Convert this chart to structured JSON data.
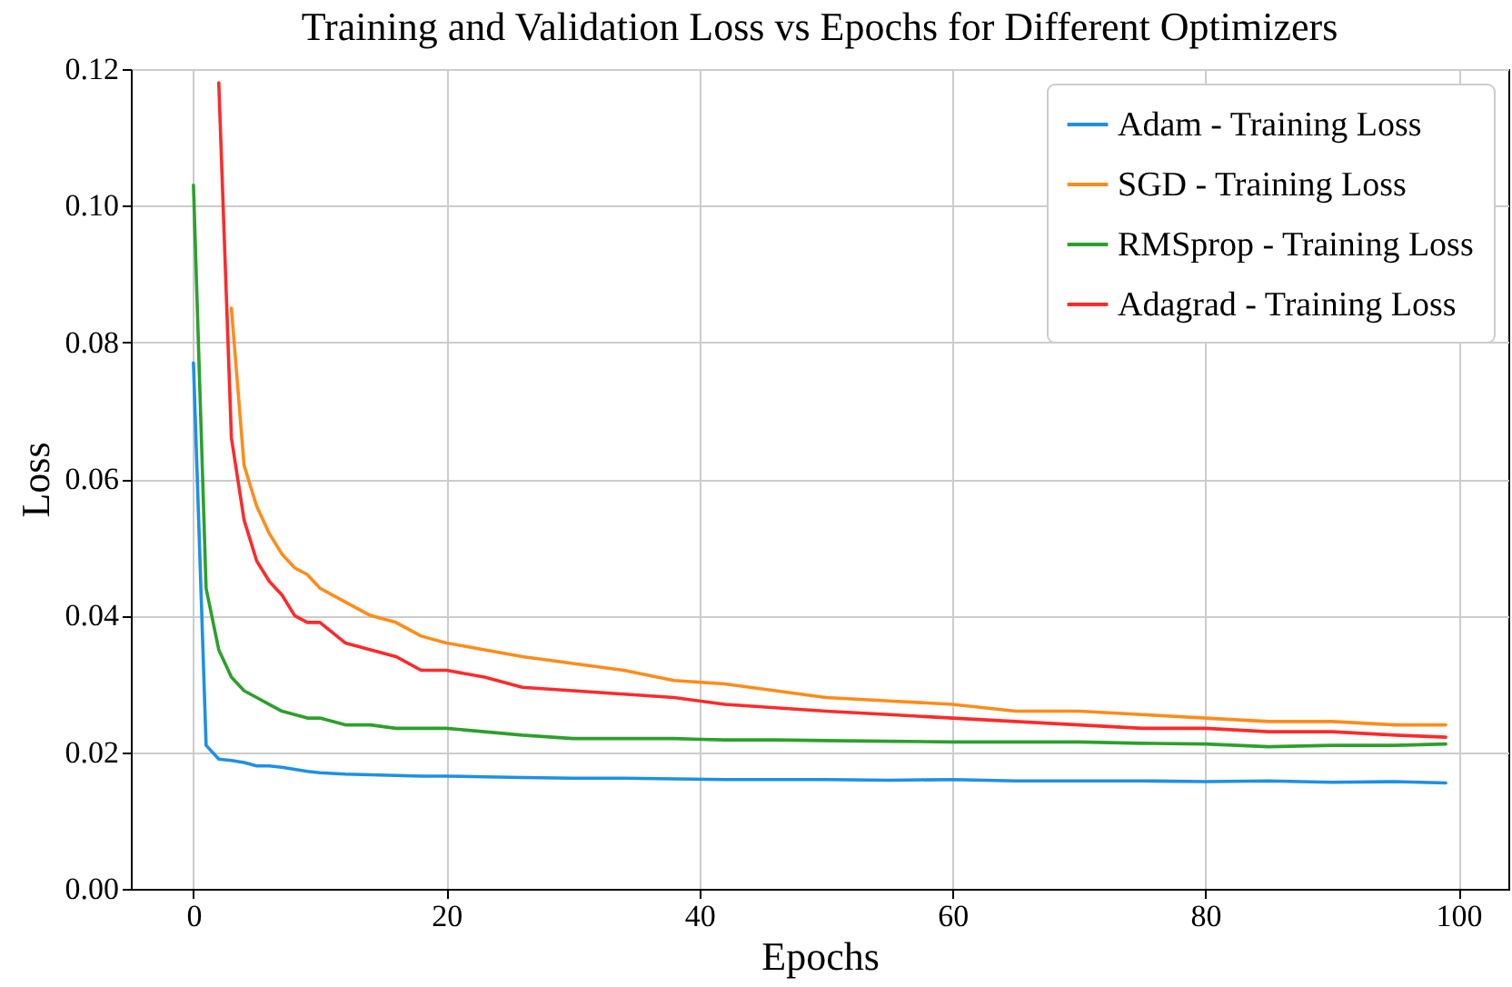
{
  "chart_data": {
    "type": "line",
    "title": "Training and Validation Loss vs Epochs for Different Optimizers",
    "xlabel": "Epochs",
    "ylabel": "Loss",
    "x": [
      0,
      1,
      2,
      3,
      4,
      5,
      6,
      7,
      8,
      9,
      10,
      12,
      14,
      16,
      18,
      20,
      23,
      26,
      30,
      34,
      38,
      42,
      46,
      50,
      55,
      60,
      65,
      70,
      75,
      80,
      85,
      90,
      95,
      99
    ],
    "series": [
      {
        "name": "Adam - Training Loss",
        "color": "#1e90e6",
        "values": [
          0.077,
          0.021,
          0.019,
          0.0188,
          0.0185,
          0.018,
          0.018,
          0.0178,
          0.0175,
          0.0172,
          0.017,
          0.0168,
          0.0167,
          0.0166,
          0.0165,
          0.0165,
          0.0164,
          0.0163,
          0.0162,
          0.0162,
          0.0161,
          0.016,
          0.016,
          0.016,
          0.0159,
          0.016,
          0.0158,
          0.0158,
          0.0158,
          0.0157,
          0.0158,
          0.0156,
          0.0157,
          0.0155
        ]
      },
      {
        "name": "SGD - Training Loss",
        "color": "#ff8c1a",
        "values": [
          null,
          null,
          null,
          0.085,
          0.062,
          0.056,
          0.052,
          0.049,
          0.047,
          0.046,
          0.044,
          0.042,
          0.04,
          0.039,
          0.037,
          0.036,
          0.035,
          0.034,
          0.033,
          0.032,
          0.0305,
          0.03,
          0.029,
          0.028,
          0.0275,
          0.027,
          0.026,
          0.026,
          0.0255,
          0.025,
          0.0245,
          0.0245,
          0.024,
          0.024
        ]
      },
      {
        "name": "RMSprop - Training Loss",
        "color": "#2ca02c",
        "values": [
          0.103,
          0.044,
          0.035,
          0.031,
          0.029,
          0.028,
          0.027,
          0.026,
          0.0255,
          0.025,
          0.025,
          0.024,
          0.024,
          0.0235,
          0.0235,
          0.0235,
          0.023,
          0.0225,
          0.022,
          0.022,
          0.022,
          0.0218,
          0.0218,
          0.0217,
          0.0216,
          0.0215,
          0.0215,
          0.0215,
          0.0213,
          0.0212,
          0.0208,
          0.021,
          0.021,
          0.0212
        ]
      },
      {
        "name": "Adagrad - Training Loss",
        "color": "#ff2a2a",
        "values": [
          null,
          null,
          0.118,
          0.066,
          0.054,
          0.048,
          0.045,
          0.043,
          0.04,
          0.039,
          0.039,
          0.036,
          0.035,
          0.034,
          0.032,
          0.032,
          0.031,
          0.0295,
          0.029,
          0.0285,
          0.028,
          0.027,
          0.0265,
          0.026,
          0.0255,
          0.025,
          0.0245,
          0.024,
          0.0235,
          0.0235,
          0.023,
          0.023,
          0.0225,
          0.0222
        ]
      }
    ],
    "xlim": [
      -4.95,
      103.95
    ],
    "xticks": [
      0,
      20,
      40,
      60,
      80,
      100
    ],
    "ylim": [
      0,
      0.12
    ],
    "yticks": [
      {
        "value": 0,
        "label": "0.00"
      },
      {
        "value": 0.02,
        "label": "0.02"
      },
      {
        "value": 0.04,
        "label": "0.04"
      },
      {
        "value": 0.06,
        "label": "0.06"
      },
      {
        "value": 0.08,
        "label": "0.08"
      },
      {
        "value": 0.1,
        "label": "0.10"
      },
      {
        "value": 0.12,
        "label": "0.12"
      }
    ],
    "grid": true,
    "legend": "top right"
  }
}
